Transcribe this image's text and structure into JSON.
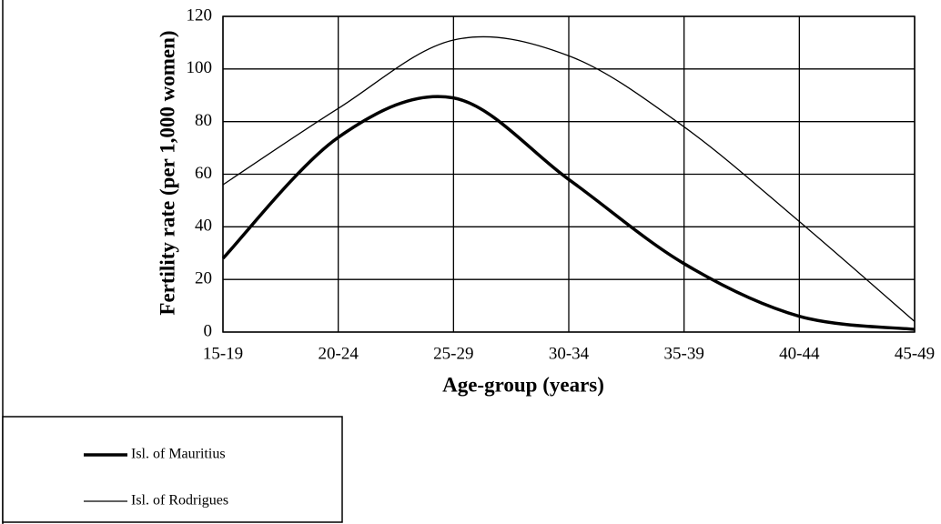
{
  "chart_data": {
    "type": "line",
    "x_label": "Age-group (years)",
    "y_label": "Fertility rate (per 1,000 women)",
    "categories": [
      "15-19",
      "20-24",
      "25-29",
      "30-34",
      "35-39",
      "40-44",
      "45-49"
    ],
    "series": [
      {
        "name": "Isl. of Mauritius",
        "color": "#000000",
        "linewidth": 3.5,
        "values": [
          28,
          74,
          89,
          58,
          26,
          6,
          1
        ]
      },
      {
        "name": "Isl. of Rodrigues",
        "color": "#000000",
        "linewidth": 1.3,
        "values": [
          56,
          85,
          111,
          105,
          78,
          42,
          4
        ]
      }
    ],
    "ylim": [
      0,
      120
    ],
    "yticks": [
      0,
      20,
      40,
      60,
      80,
      100,
      120
    ],
    "grid": true,
    "smooth": true
  }
}
